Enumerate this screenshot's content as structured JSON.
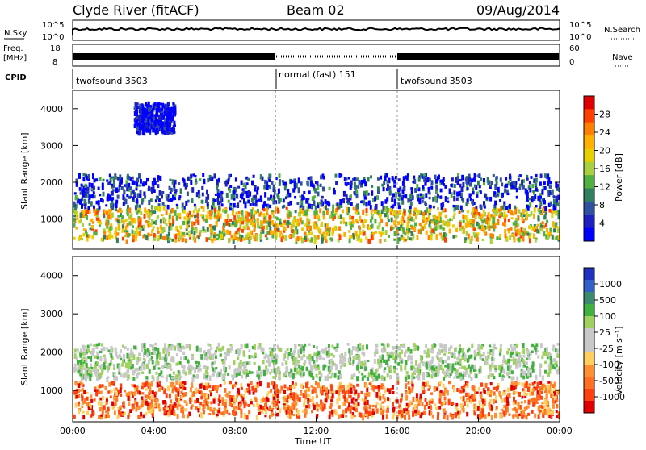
{
  "header": {
    "station": "Clyde River (fitACF)",
    "beam": "Beam 02",
    "date": "09/Aug/2014"
  },
  "strips": {
    "nsky_label": "N.Sky",
    "nsky_ticks": [
      "10^5",
      "10^0"
    ],
    "nsearch_label": "N.Search",
    "freq_label_line1": "Freq.",
    "freq_label_line2": "[MHz]",
    "freq_ticks": [
      "18",
      "8"
    ],
    "nave_ticks": [
      "60",
      "0"
    ],
    "nave_label": "Nave",
    "cpid_label": "CPID",
    "cpid_segments": [
      {
        "label": "twofsound 3503",
        "start_hour": 0,
        "end_hour": 10
      },
      {
        "label": "normal (fast) 151",
        "start_hour": 10,
        "end_hour": 16
      },
      {
        "label": "twofsound 3503",
        "start_hour": 16,
        "end_hour": 24
      }
    ]
  },
  "axes": {
    "ylabel": "Slant Range [km]",
    "xlabel": "Time UT",
    "x_ticks": [
      "00:00",
      "04:00",
      "08:00",
      "12:00",
      "16:00",
      "20:00",
      "00:00"
    ],
    "y_ticks": [
      "1000",
      "2000",
      "3000",
      "4000"
    ]
  },
  "power_bar": {
    "label": "Power [dB]",
    "ticks": [
      "28",
      "24",
      "20",
      "16",
      "12",
      "8",
      "4"
    ],
    "colors": [
      "#e00000",
      "#ff4000",
      "#ff8000",
      "#ffb000",
      "#e8d000",
      "#a8d040",
      "#50b040",
      "#308060",
      "#3050a0",
      "#2020c0",
      "#0000ff"
    ]
  },
  "velocity_bar": {
    "label": "Velocity [m s⁻¹]",
    "ticks": [
      "1000",
      "500",
      "100",
      "25",
      "-25",
      "-100",
      "-500",
      "-1000"
    ],
    "colors": [
      "#2030c0",
      "#3060c8",
      "#3a8a70",
      "#40b040",
      "#a0d060",
      "#c8c8c8",
      "#c8c8c8",
      "#ffd060",
      "#ff9030",
      "#ff7020",
      "#ff4010",
      "#e00000"
    ]
  },
  "chart_data": [
    {
      "type": "heatmap",
      "title": "Power [dB]",
      "xlabel": "Time UT",
      "ylabel": "Slant Range [km]",
      "xlim": [
        0,
        24
      ],
      "ylim": [
        180,
        4500
      ],
      "color_scale": [
        0,
        30
      ],
      "bands": [
        {
          "t": [
            0,
            24
          ],
          "range_center_km": 900,
          "power_peak_db": 26
        },
        {
          "t": [
            0,
            24
          ],
          "range_center_km": 1800,
          "power_peak_db": 12
        },
        {
          "t": [
            3,
            5
          ],
          "range_center_km": 3800,
          "power_peak_db": 8
        }
      ]
    },
    {
      "type": "heatmap",
      "title": "Velocity",
      "xlabel": "Time UT",
      "ylabel": "Slant Range [km]",
      "xlim": [
        0,
        24
      ],
      "ylim": [
        180,
        4500
      ],
      "color_scale": [
        -1000,
        1000
      ],
      "bands": [
        {
          "t": [
            0,
            24
          ],
          "range_center_km": 800,
          "velocity_ms": -300
        },
        {
          "t": [
            0,
            24
          ],
          "range_center_km": 1800,
          "velocity_ms": 0
        }
      ]
    }
  ]
}
